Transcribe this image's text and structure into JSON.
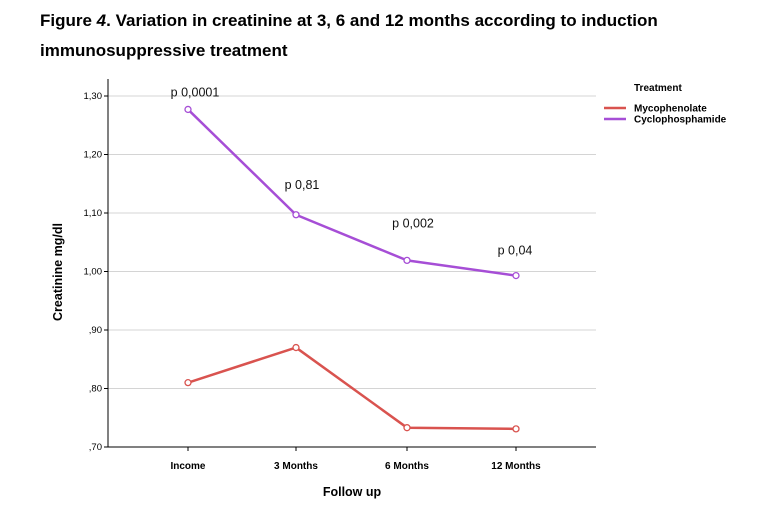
{
  "figure": {
    "title_prefix": "Figure ",
    "title_number": "4",
    "title_rest": ". Variation in creatinine at 3, 6 and 12 months according to induction immunosuppressive treatment"
  },
  "chart_data": {
    "type": "line",
    "xlabel": "Follow up",
    "ylabel": "Creatinine mg/dl",
    "categories": [
      "Income",
      "3 Months",
      "6 Months",
      "12 Months"
    ],
    "ylim": [
      0.7,
      1.3
    ],
    "yticks": [
      0.7,
      0.8,
      0.9,
      1.0,
      1.1,
      1.2,
      1.3
    ],
    "ytick_labels": [
      ",70",
      ",80",
      ",90",
      "1,00",
      "1,10",
      "1,20",
      "1,30"
    ],
    "grid": "horizontal",
    "legend": {
      "title": "Treatment",
      "placement": "top-right"
    },
    "series": [
      {
        "name": "Mycophenolate",
        "color": "#d9534f",
        "values": [
          0.81,
          0.87,
          0.733,
          0.731
        ]
      },
      {
        "name": "Cyclophosphamide",
        "color": "#a64ed6",
        "values": [
          1.277,
          1.097,
          1.019,
          0.993
        ]
      }
    ],
    "annotations": [
      "p 0,0001",
      "p 0,81",
      "p 0,002",
      "p 0,04"
    ]
  }
}
